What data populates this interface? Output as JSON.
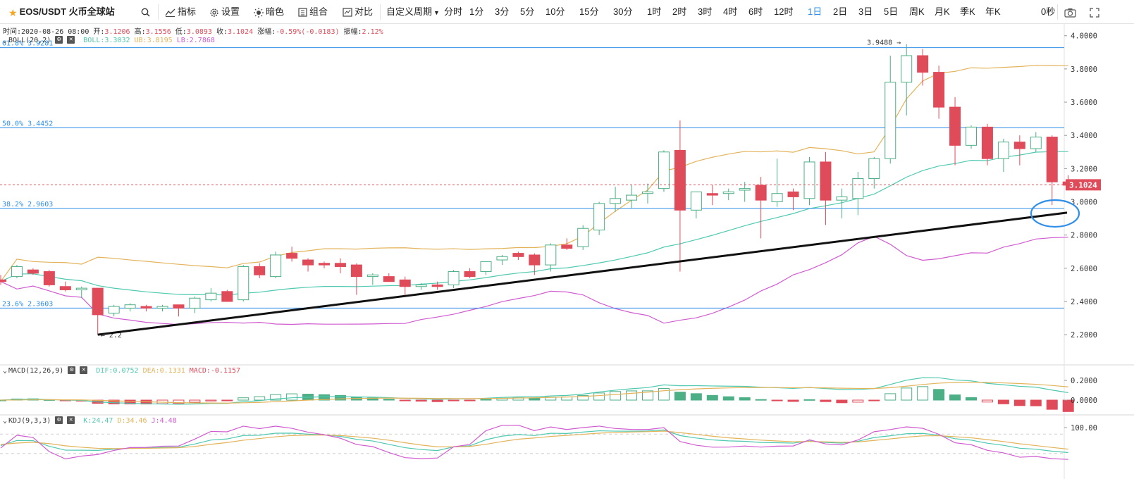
{
  "toolbar": {
    "symbol": "EOS/USDT 火币全球站",
    "indicators_label": "指标",
    "settings_label": "设置",
    "dark_label": "暗色",
    "combo_label": "组合",
    "compare_label": "对比",
    "custom_period_label": "自定义周期",
    "periods": [
      "分时",
      "1分",
      "3分",
      "5分",
      "10分",
      "15分",
      "30分",
      "1时",
      "2时",
      "3时",
      "4时",
      "6时",
      "12时",
      "1日",
      "2日",
      "3日",
      "5日",
      "周K",
      "月K",
      "季K",
      "年K"
    ],
    "active_period": "1日",
    "countdown": "0秒"
  },
  "ohlc": {
    "time": "时间:2020-08-26 08:00",
    "open_label": "开:",
    "open": "3.1206",
    "high_label": "高:",
    "high": "3.1556",
    "low_label": "低:",
    "low": "3.0893",
    "close_label": "收:",
    "close": "3.1024",
    "change_label": "涨幅:",
    "change": "-0.59%(-0.0183)",
    "amp_label": "振幅:",
    "amp": "2.12%"
  },
  "boll": {
    "name": "BOLL(20,2)",
    "mid": "BOLL:3.3032",
    "ub": "UB:3.8195",
    "lb": "LB:2.7868"
  },
  "macd": {
    "name": "MACD(12,26,9)",
    "dif": "DIF:0.0752",
    "dea": "DEA:0.1331",
    "macd": "MACD:-0.1157"
  },
  "kdj": {
    "name": "KDJ(9,3,3)",
    "k": "K:24.47",
    "d": "D:34.46",
    "j": "J:4.48"
  },
  "fib": [
    {
      "label": "61.8% 3.9281",
      "value": 3.9281
    },
    {
      "label": "50.0% 3.4452",
      "value": 3.4452
    },
    {
      "label": "38.2% 2.9603",
      "value": 2.9603
    },
    {
      "label": "23.6% 2.3603",
      "value": 2.3603
    }
  ],
  "high_marker": "3.9488",
  "low_marker": "2.2",
  "last_price": "3.1024",
  "price_axis": [
    "4.0000",
    "3.8000",
    "3.6000",
    "3.4000",
    "3.2000",
    "3.0000",
    "2.8000",
    "2.6000",
    "2.4000",
    "2.2000"
  ],
  "macd_axis": [
    "0.2000",
    "0.0000"
  ],
  "kdj_axis": [
    "100.00"
  ],
  "colors": {
    "up": "#4caf85",
    "down": "#e04b5a",
    "boll_mid": "#4ec9b0",
    "boll_ub": "#e3b35a",
    "boll_lb": "#d05bd0",
    "fib": "#2f8fe8",
    "accent": "#2f8fe8",
    "trendline": "#111111"
  },
  "chart_data": {
    "type": "candlestick",
    "candles": [
      [
        2.53,
        2.56,
        2.5,
        2.52
      ],
      [
        2.55,
        2.62,
        2.54,
        2.61
      ],
      [
        2.59,
        2.6,
        2.56,
        2.57
      ],
      [
        2.58,
        2.59,
        2.49,
        2.5
      ],
      [
        2.49,
        2.52,
        2.46,
        2.47
      ],
      [
        2.47,
        2.49,
        2.42,
        2.48
      ],
      [
        2.48,
        2.48,
        2.2,
        2.32
      ],
      [
        2.33,
        2.38,
        2.31,
        2.37
      ],
      [
        2.36,
        2.39,
        2.34,
        2.38
      ],
      [
        2.37,
        2.38,
        2.34,
        2.36
      ],
      [
        2.36,
        2.38,
        2.34,
        2.37
      ],
      [
        2.38,
        2.38,
        2.31,
        2.36
      ],
      [
        2.36,
        2.43,
        2.33,
        2.42
      ],
      [
        2.41,
        2.48,
        2.4,
        2.45
      ],
      [
        2.46,
        2.47,
        2.4,
        2.4
      ],
      [
        2.41,
        2.62,
        2.4,
        2.61
      ],
      [
        2.61,
        2.63,
        2.54,
        2.56
      ],
      [
        2.55,
        2.7,
        2.54,
        2.68
      ],
      [
        2.69,
        2.73,
        2.64,
        2.66
      ],
      [
        2.65,
        2.66,
        2.58,
        2.62
      ],
      [
        2.63,
        2.64,
        2.6,
        2.62
      ],
      [
        2.63,
        2.66,
        2.57,
        2.61
      ],
      [
        2.62,
        2.63,
        2.44,
        2.55
      ],
      [
        2.55,
        2.57,
        2.5,
        2.56
      ],
      [
        2.55,
        2.57,
        2.52,
        2.52
      ],
      [
        2.53,
        2.55,
        2.44,
        2.49
      ],
      [
        2.49,
        2.51,
        2.47,
        2.5
      ],
      [
        2.5,
        2.52,
        2.47,
        2.49
      ],
      [
        2.5,
        2.59,
        2.48,
        2.58
      ],
      [
        2.58,
        2.6,
        2.54,
        2.55
      ],
      [
        2.58,
        2.64,
        2.56,
        2.64
      ],
      [
        2.65,
        2.68,
        2.62,
        2.67
      ],
      [
        2.69,
        2.7,
        2.65,
        2.67
      ],
      [
        2.68,
        2.69,
        2.56,
        2.62
      ],
      [
        2.62,
        2.75,
        2.58,
        2.74
      ],
      [
        2.74,
        2.78,
        2.71,
        2.72
      ],
      [
        2.73,
        2.86,
        2.71,
        2.84
      ],
      [
        2.83,
        3.0,
        2.8,
        2.99
      ],
      [
        2.99,
        3.09,
        2.94,
        3.02
      ],
      [
        3.01,
        3.1,
        2.96,
        3.04
      ],
      [
        3.05,
        3.11,
        2.99,
        3.06
      ],
      [
        3.08,
        3.31,
        3.06,
        3.3
      ],
      [
        3.31,
        3.49,
        2.58,
        2.95
      ],
      [
        2.95,
        3.06,
        2.9,
        3.06
      ],
      [
        3.05,
        3.1,
        2.98,
        3.04
      ],
      [
        3.05,
        3.08,
        3.01,
        3.06
      ],
      [
        3.07,
        3.12,
        3.0,
        3.08
      ],
      [
        3.1,
        3.15,
        2.78,
        3.01
      ],
      [
        3.0,
        3.26,
        2.97,
        3.05
      ],
      [
        3.06,
        3.08,
        2.95,
        3.03
      ],
      [
        3.02,
        3.27,
        2.98,
        3.24
      ],
      [
        3.24,
        3.3,
        2.86,
        3.01
      ],
      [
        3.01,
        3.08,
        2.9,
        3.03
      ],
      [
        3.02,
        3.18,
        2.92,
        3.14
      ],
      [
        3.14,
        3.27,
        3.08,
        3.26
      ],
      [
        3.26,
        3.88,
        3.23,
        3.72
      ],
      [
        3.72,
        3.95,
        3.52,
        3.88
      ],
      [
        3.88,
        3.92,
        3.7,
        3.78
      ],
      [
        3.78,
        3.82,
        3.5,
        3.57
      ],
      [
        3.57,
        3.63,
        3.22,
        3.34
      ],
      [
        3.34,
        3.46,
        3.32,
        3.45
      ],
      [
        3.45,
        3.47,
        3.22,
        3.26
      ],
      [
        3.26,
        3.38,
        3.18,
        3.36
      ],
      [
        3.36,
        3.4,
        3.22,
        3.32
      ],
      [
        3.32,
        3.42,
        3.3,
        3.39
      ],
      [
        3.39,
        3.4,
        2.98,
        3.12
      ],
      [
        3.12,
        3.16,
        3.09,
        3.1
      ]
    ]
  }
}
